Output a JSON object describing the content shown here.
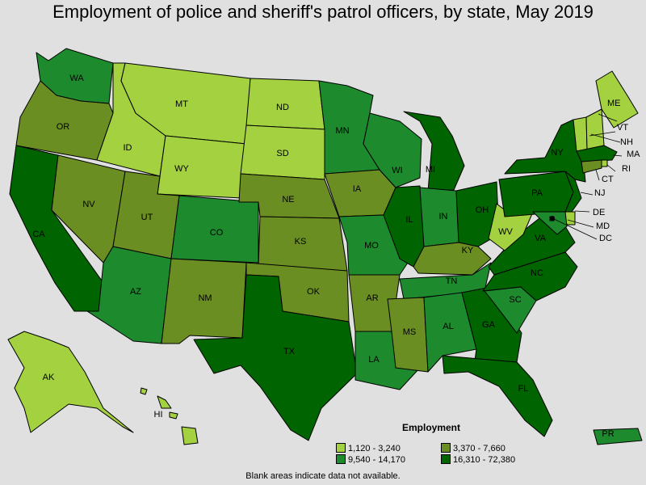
{
  "title": "Employment of police and sheriff's patrol officers, by state, May 2019",
  "colors": {
    "c1": "#a3d13f",
    "c2": "#6b8e23",
    "c3": "#1e8a2e",
    "c4": "#006400"
  },
  "legend": {
    "title": "Employment",
    "items": [
      {
        "label": "1,120 - 3,240",
        "color": "#a3d13f"
      },
      {
        "label": "3,370 - 7,660",
        "color": "#6b8e23"
      },
      {
        "label": "9,540 - 14,170",
        "color": "#1e8a2e"
      },
      {
        "label": "16,310 - 72,380",
        "color": "#006400"
      }
    ]
  },
  "note": "Blank areas indicate data not available.",
  "states": {
    "WA": {
      "label": "WA",
      "bin": "9,540 - 14,170"
    },
    "OR": {
      "label": "OR",
      "bin": "3,370 - 7,660"
    },
    "CA": {
      "label": "CA",
      "bin": "16,310 - 72,380"
    },
    "NV": {
      "label": "NV",
      "bin": "3,370 - 7,660"
    },
    "ID": {
      "label": "ID",
      "bin": "1,120 - 3,240"
    },
    "MT": {
      "label": "MT",
      "bin": "1,120 - 3,240"
    },
    "WY": {
      "label": "WY",
      "bin": "1,120 - 3,240"
    },
    "UT": {
      "label": "UT",
      "bin": "3,370 - 7,660"
    },
    "AZ": {
      "label": "AZ",
      "bin": "9,540 - 14,170"
    },
    "CO": {
      "label": "CO",
      "bin": "9,540 - 14,170"
    },
    "NM": {
      "label": "NM",
      "bin": "3,370 - 7,660"
    },
    "ND": {
      "label": "ND",
      "bin": "1,120 - 3,240"
    },
    "SD": {
      "label": "SD",
      "bin": "1,120 - 3,240"
    },
    "NE": {
      "label": "NE",
      "bin": "3,370 - 7,660"
    },
    "KS": {
      "label": "KS",
      "bin": "3,370 - 7,660"
    },
    "OK": {
      "label": "OK",
      "bin": "3,370 - 7,660"
    },
    "TX": {
      "label": "TX",
      "bin": "16,310 - 72,380"
    },
    "MN": {
      "label": "MN",
      "bin": "9,540 - 14,170"
    },
    "IA": {
      "label": "IA",
      "bin": "3,370 - 7,660"
    },
    "MO": {
      "label": "MO",
      "bin": "9,540 - 14,170"
    },
    "AR": {
      "label": "AR",
      "bin": "3,370 - 7,660"
    },
    "LA": {
      "label": "LA",
      "bin": "9,540 - 14,170"
    },
    "WI": {
      "label": "WI",
      "bin": "9,540 - 14,170"
    },
    "IL": {
      "label": "IL",
      "bin": "16,310 - 72,380"
    },
    "MI": {
      "label": "MI",
      "bin": "16,310 - 72,380"
    },
    "IN": {
      "label": "IN",
      "bin": "9,540 - 14,170"
    },
    "OH": {
      "label": "OH",
      "bin": "16,310 - 72,380"
    },
    "KY": {
      "label": "KY",
      "bin": "3,370 - 7,660"
    },
    "TN": {
      "label": "TN",
      "bin": "9,540 - 14,170"
    },
    "MS": {
      "label": "MS",
      "bin": "3,370 - 7,660"
    },
    "AL": {
      "label": "AL",
      "bin": "9,540 - 14,170"
    },
    "GA": {
      "label": "GA",
      "bin": "16,310 - 72,380"
    },
    "FL": {
      "label": "FL",
      "bin": "16,310 - 72,380"
    },
    "SC": {
      "label": "SC",
      "bin": "9,540 - 14,170"
    },
    "NC": {
      "label": "NC",
      "bin": "16,310 - 72,380"
    },
    "VA": {
      "label": "VA",
      "bin": "16,310 - 72,380"
    },
    "WV": {
      "label": "WV",
      "bin": "1,120 - 3,240"
    },
    "PA": {
      "label": "PA",
      "bin": "16,310 - 72,380"
    },
    "NY": {
      "label": "NY",
      "bin": "16,310 - 72,380"
    },
    "ME": {
      "label": "ME",
      "bin": "1,120 - 3,240"
    },
    "VT": {
      "label": "VT",
      "bin": "1,120 - 3,240"
    },
    "NH": {
      "label": "NH",
      "bin": "1,120 - 3,240"
    },
    "MA": {
      "label": "MA",
      "bin": "16,310 - 72,380"
    },
    "RI": {
      "label": "RI",
      "bin": "1,120 - 3,240"
    },
    "CT": {
      "label": "CT",
      "bin": "3,370 - 7,660"
    },
    "NJ": {
      "label": "NJ",
      "bin": "16,310 - 72,380"
    },
    "DE": {
      "label": "DE",
      "bin": "1,120 - 3,240"
    },
    "MD": {
      "label": "MD",
      "bin": "9,540 - 14,170"
    },
    "DC": {
      "label": "DC",
      "bin": "3,370 - 7,660"
    },
    "AK": {
      "label": "AK",
      "bin": "1,120 - 3,240"
    },
    "HI": {
      "label": "HI",
      "bin": "1,120 - 3,240"
    },
    "PR": {
      "label": "PR",
      "bin": "9,540 - 14,170"
    }
  }
}
